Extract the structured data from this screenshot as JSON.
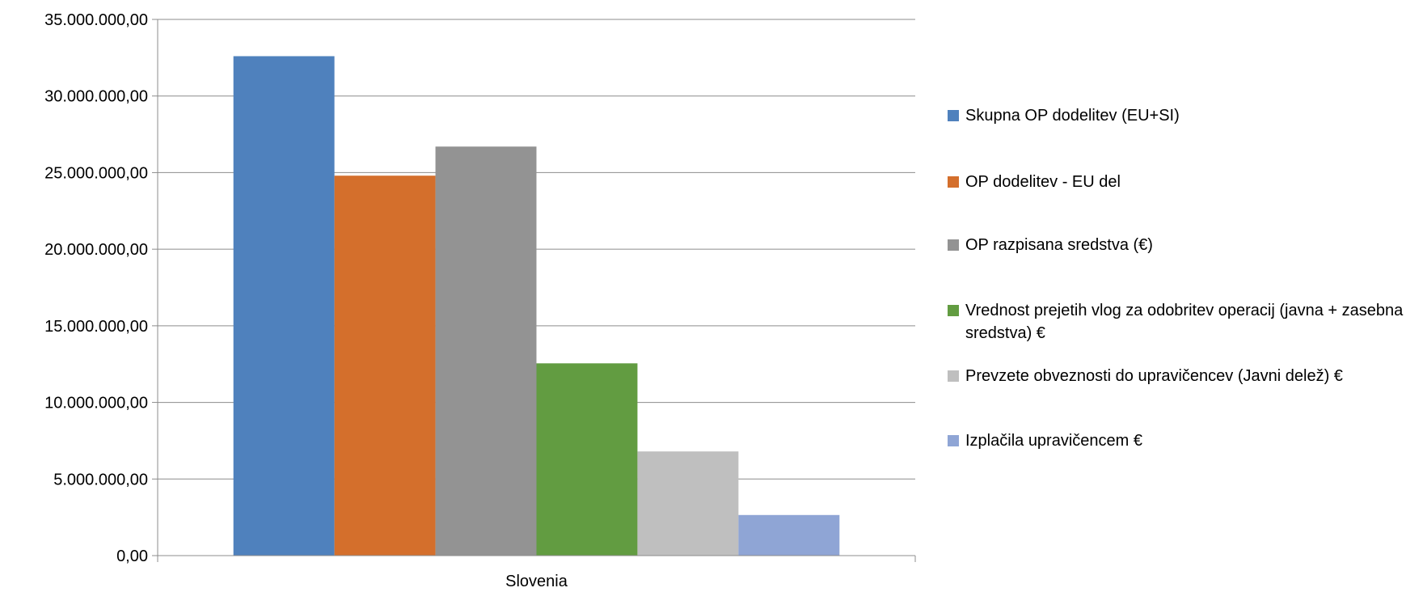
{
  "chart_data": {
    "type": "bar",
    "categories": [
      "Slovenia"
    ],
    "ylim": [
      0,
      35000000
    ],
    "yticks": [
      "0,00",
      "5.000.000,00",
      "10.000.000,00",
      "15.000.000,00",
      "20.000.000,00",
      "25.000.000,00",
      "30.000.000,00",
      "35.000.000,00"
    ],
    "ytick_values": [
      0,
      5000000,
      10000000,
      15000000,
      20000000,
      25000000,
      30000000,
      35000000
    ],
    "grid": true,
    "legend_position": "right",
    "series": [
      {
        "name": "Skupna OP dodelitev (EU+SI)",
        "values": [
          32600000
        ],
        "color": "#4F81BD"
      },
      {
        "name": "OP dodelitev - EU del",
        "values": [
          24800000
        ],
        "color": "#D46F2C"
      },
      {
        "name": "OP razpisana sredstva (€)",
        "values": [
          26700000
        ],
        "color": "#939393"
      },
      {
        "name": "Vrednost prejetih vlog za odobritev operacij (javna + zasebna sredstva) €",
        "values": [
          12550000
        ],
        "color": "#629C41"
      },
      {
        "name": "Prevzete obveznosti do upravičencev (Javni delež) €",
        "values": [
          6800000
        ],
        "color": "#BFBFBF"
      },
      {
        "name": "Izplačila upravičencem €",
        "values": [
          2650000
        ],
        "color": "#8FA5D5"
      }
    ]
  }
}
